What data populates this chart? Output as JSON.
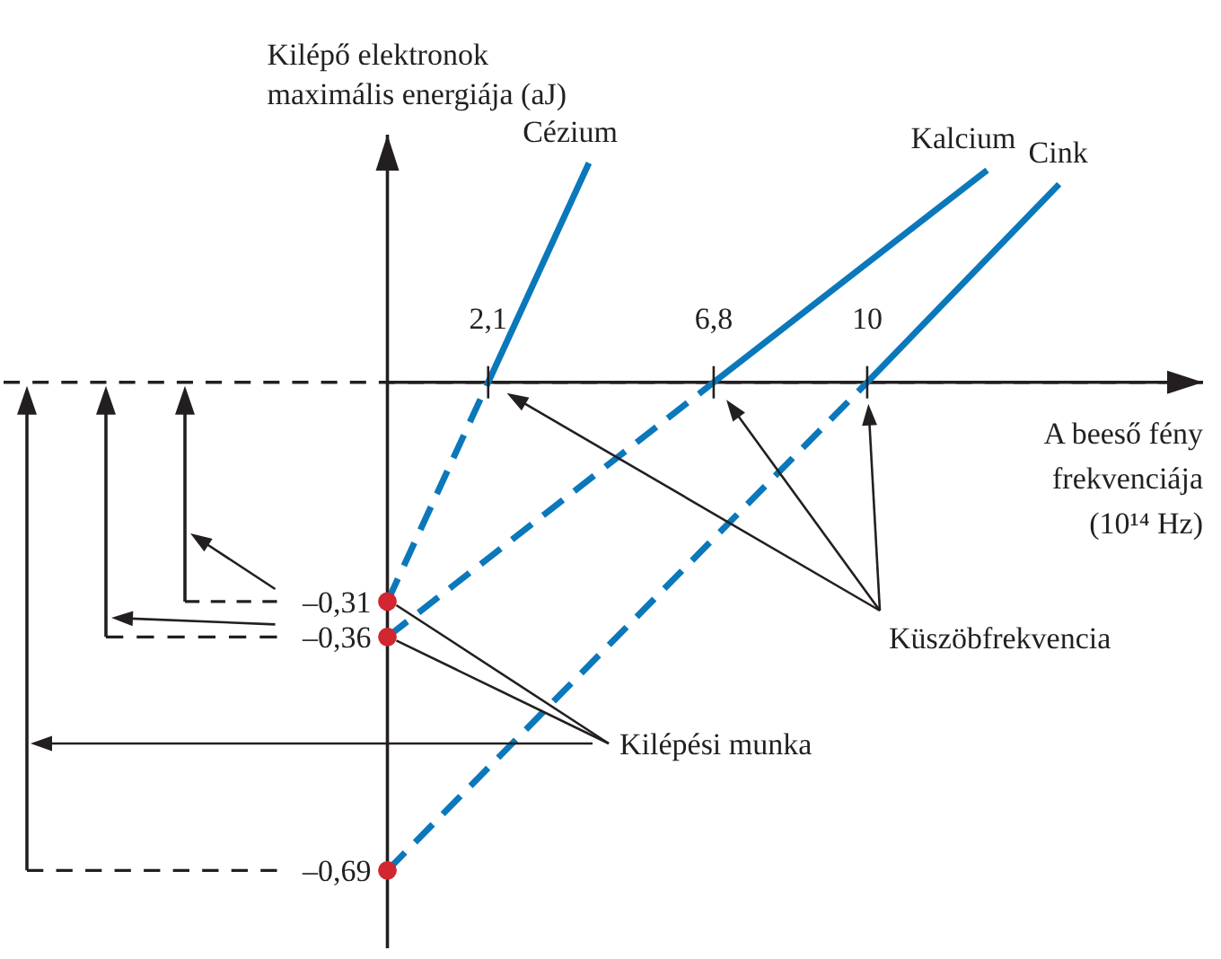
{
  "chart_data": {
    "type": "line",
    "xlabel": "A beeső fény frekvenciája (10¹⁴ Hz)",
    "ylabel": "Kilépő elektronok maximális energiája (aJ)",
    "xlim": [
      -8,
      17
    ],
    "ylim": [
      -0.8,
      0.35
    ],
    "xticks": [
      {
        "value": 2.1,
        "label": "2,1"
      },
      {
        "value": 6.8,
        "label": "6,8"
      },
      10
    ],
    "yticks": [
      {
        "value": -0.31,
        "label": "–0,31"
      },
      {
        "value": -0.36,
        "label": "–0,36"
      },
      {
        "value": -0.69,
        "label": "–0,69"
      }
    ],
    "series": [
      {
        "color": "#0a78ba",
        "line_style": "dashed",
        "x": [
          0,
          2.1
        ],
        "values": [
          -0.31,
          0
        ]
      },
      {
        "name": "Cézium",
        "color": "#0a78ba",
        "x": [
          2.1,
          4.2
        ],
        "values": [
          0,
          0.31
        ]
      },
      {
        "color": "#0a78ba",
        "line_style": "dashed",
        "x": [
          0,
          6.8
        ],
        "values": [
          -0.36,
          0
        ]
      },
      {
        "name": "Kalcium",
        "color": "#0a78ba",
        "x": [
          6.8,
          12.5
        ],
        "values": [
          0,
          0.3
        ]
      },
      {
        "color": "#0a78ba",
        "line_style": "dashed",
        "x": [
          0,
          10
        ],
        "values": [
          -0.69,
          0
        ]
      },
      {
        "name": "Cink",
        "color": "#0a78ba",
        "x": [
          10,
          14
        ],
        "values": [
          0,
          0.28
        ]
      },
      {
        "type": "scatter",
        "color": "#d22630",
        "marker": "circle",
        "x": [
          0,
          0,
          0
        ],
        "values": [
          -0.31,
          -0.36,
          -0.69
        ]
      }
    ],
    "ref_lines": [
      {
        "axis": "y",
        "value": 0,
        "line_style": "dashed"
      }
    ],
    "annotations": [
      "Küszöbfrekvencia",
      {
        "text": "Kilépési munka",
        "x": 0,
        "y": -0.36
      }
    ]
  }
}
